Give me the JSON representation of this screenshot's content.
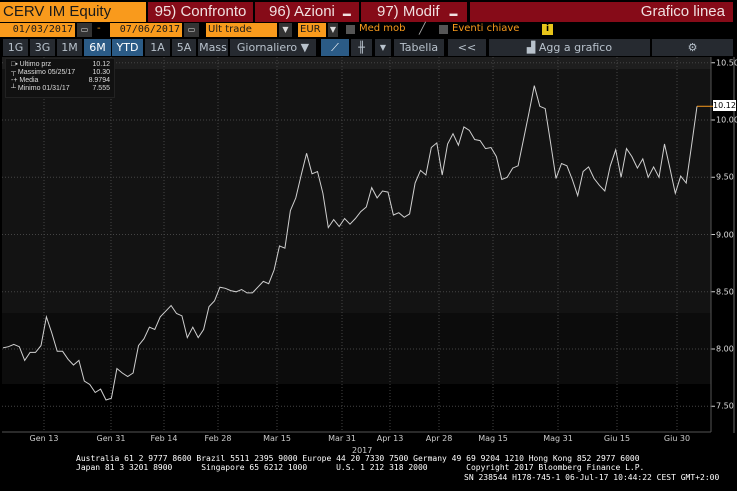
{
  "header": {
    "ticker": "CERV IM Equity",
    "buttons": [
      {
        "label": "95) Confronto"
      },
      {
        "label": "96) Azioni"
      },
      {
        "label": "97) Modif"
      }
    ],
    "chart_type": "Grafico linea"
  },
  "controls": {
    "start_date": "01/03/2017",
    "dash": "-",
    "end_date": "07/06/2017",
    "price_field": "Ult trade",
    "currency": "EUR",
    "moving_avg": "Med mob",
    "key_events": "Eventi chiave",
    "info_icon": "i"
  },
  "tabs": {
    "periods": [
      "1G",
      "3G",
      "1M",
      "6M",
      "YTD",
      "1A",
      "5A",
      "Mass"
    ],
    "selected": [
      "6M",
      "YTD"
    ],
    "frequency": "Giornaliero ▼",
    "table": "Tabella",
    "back": "<<",
    "add_to_chart": "Agg a grafico"
  },
  "legend": [
    {
      "label": "Ultimo prz",
      "value": "10.12"
    },
    {
      "label": "Massimo 05/25/17",
      "value": "10.30"
    },
    {
      "label": "Media",
      "value": "8.9794"
    },
    {
      "label": "Minimo 01/31/17",
      "value": "7.555"
    }
  ],
  "colors": {
    "accent": "#f99a1c",
    "header_red": "#860b18",
    "line": "#d0d0d0",
    "last_price": "#f99a1c"
  },
  "chart_data": {
    "type": "line",
    "x_ticks": [
      "Gen 13",
      "Gen 31",
      "Feb 14",
      "Feb 28",
      "Mar 15",
      "Mar 31",
      "Apr 13",
      "Apr 28",
      "Mag 15",
      "Mag 31",
      "Giu 15",
      "Giu 30"
    ],
    "x_year": "2017",
    "y_ticks": [
      "10.50",
      "10.00",
      "9.50",
      "9.00",
      "8.50",
      "8.00",
      "7.50"
    ],
    "ylim": [
      7.3,
      10.55
    ],
    "last_value_label": "10.12",
    "grid": true,
    "values": [
      8.01,
      8.02,
      8.04,
      8.02,
      7.9,
      7.97,
      7.97,
      8.03,
      8.28,
      8.14,
      7.98,
      7.98,
      7.91,
      7.86,
      7.9,
      7.72,
      7.69,
      7.62,
      7.65,
      7.555,
      7.57,
      7.83,
      7.79,
      7.76,
      7.79,
      8.03,
      8.09,
      8.19,
      8.17,
      8.28,
      8.33,
      8.38,
      8.31,
      8.29,
      8.1,
      8.19,
      8.1,
      8.17,
      8.37,
      8.42,
      8.54,
      8.53,
      8.51,
      8.5,
      8.52,
      8.49,
      8.49,
      8.54,
      8.59,
      8.57,
      8.69,
      8.9,
      8.88,
      9.21,
      9.32,
      9.52,
      9.71,
      9.53,
      9.55,
      9.36,
      9.06,
      9.13,
      9.07,
      9.14,
      9.09,
      9.14,
      9.2,
      9.24,
      9.41,
      9.32,
      9.38,
      9.37,
      9.17,
      9.19,
      9.15,
      9.18,
      9.45,
      9.56,
      9.52,
      9.76,
      9.8,
      9.52,
      9.79,
      9.88,
      9.78,
      9.94,
      9.91,
      9.83,
      9.82,
      9.75,
      9.76,
      9.68,
      9.48,
      9.5,
      9.58,
      9.6,
      9.83,
      10.06,
      10.3,
      10.12,
      10.1,
      9.8,
      9.49,
      9.62,
      9.6,
      9.48,
      9.34,
      9.55,
      9.59,
      9.49,
      9.43,
      9.38,
      9.6,
      9.74,
      9.5,
      9.75,
      9.68,
      9.58,
      9.66,
      9.5,
      9.59,
      9.5,
      9.79,
      9.58,
      9.36,
      9.51,
      9.45,
      9.78,
      10.12
    ]
  },
  "footer": {
    "line1": "Australia 61 2 9777 8600 Brazil 5511 2395 9000 Europe 44 20 7330 7500 Germany 49 69 9204 1210 Hong Kong 852 2977 6000",
    "line2": "Japan 81 3 3201 8900      Singapore 65 6212 1000      U.S. 1 212 318 2000        Copyright 2017 Bloomberg Finance L.P.",
    "line3": "SN 238544 H178-745-1 06-Jul-17 10:44:22 CEST GMT+2:00"
  }
}
